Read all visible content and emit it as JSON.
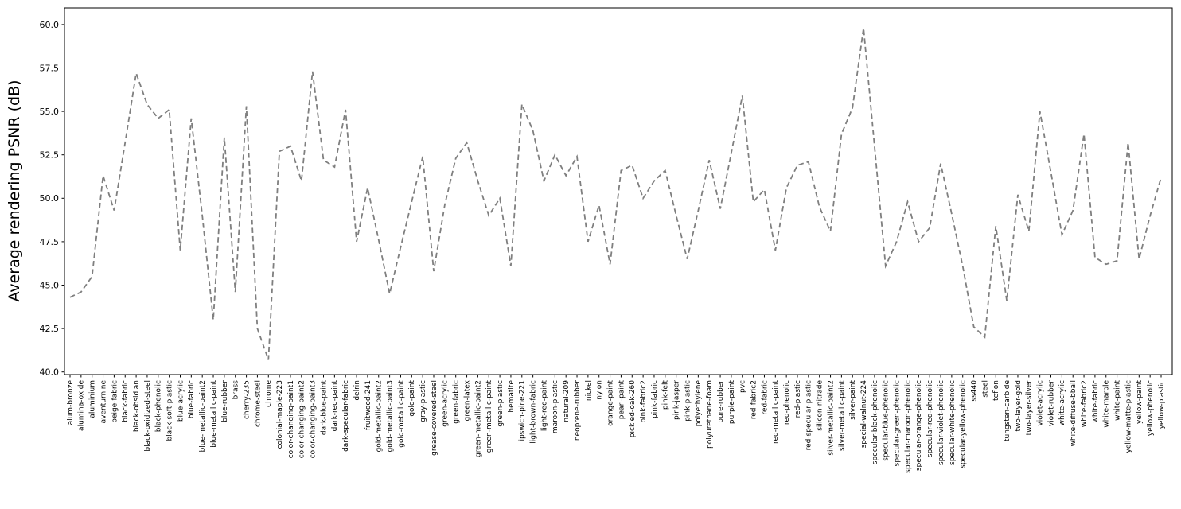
{
  "figure": {
    "background": "#ffffff",
    "line_color": "#7f7f7f",
    "axis_color": "#000000",
    "tick_label_color": "#000000"
  },
  "chart_data": {
    "type": "line",
    "title": "",
    "xlabel": "",
    "ylabel": "Average rendering PSNR (dB)",
    "grid": false,
    "legend": "none",
    "line_style": "dashed",
    "ylim": [
      39.8,
      61.0
    ],
    "yticks": [
      40.0,
      42.5,
      45.0,
      47.5,
      50.0,
      52.5,
      55.0,
      57.5,
      60.0
    ],
    "categories": [
      "alum-bronze",
      "alumina-oxide",
      "aluminium",
      "aventurnine",
      "beige-fabric",
      "black-fabric",
      "black-obsidian",
      "black-oxidized-steel",
      "black-phenolic",
      "black-soft-plastic",
      "blue-acrylic",
      "blue-fabric",
      "blue-metallic-paint2",
      "blue-metallic-paint",
      "blue-rubber",
      "brass",
      "cherry-235",
      "chrome-steel",
      "chrome",
      "colonial-maple-223",
      "color-changing-paint1",
      "color-changing-paint2",
      "color-changing-paint3",
      "dark-blue-paint",
      "dark-red-paint",
      "dark-specular-fabric",
      "delrin",
      "fruitwood-241",
      "gold-metallic-paint2",
      "gold-metallic-paint3",
      "gold-metallic-paint",
      "gold-paint",
      "gray-plastic",
      "grease-covered-steel",
      "green-acrylic",
      "green-fabric",
      "green-latex",
      "green-metallic-paint2",
      "green-metallic-paint",
      "green-plastic",
      "hematite",
      "ipswich-pine-221",
      "light-brown-fabric",
      "light-red-paint",
      "maroon-plastic",
      "natural-209",
      "neoprene-rubber",
      "nickel",
      "nylon",
      "orange-paint",
      "pearl-paint",
      "pickled-oak-260",
      "pink-fabric2",
      "pink-fabric",
      "pink-felt",
      "pink-jasper",
      "pink-plastic",
      "polyethylene",
      "polyurethane-foam",
      "pure-rubber",
      "purple-paint",
      "pvc",
      "red-fabric2",
      "red-fabric",
      "red-metallic-paint",
      "red-phenolic",
      "red-plastic",
      "red-specular-plastic",
      "silicon-nitrade",
      "silver-metallic-paint2",
      "silver-metallic-paint",
      "silver-paint",
      "special-walnut-224",
      "specular-black-phenolic",
      "specular-blue-phenolic",
      "specular-green-phenolic",
      "specular-maroon-phenolic",
      "specular-orange-phenolic",
      "specular-red-phenolic",
      "specular-violet-phenolic",
      "specular-white-phenolic",
      "specular-yellow-phenolic",
      "ss440",
      "steel",
      "teflon",
      "tungsten-carbide",
      "two-layer-gold",
      "two-layer-silver",
      "violet-acrylic",
      "violet-rubber",
      "white-acrylic",
      "white-diffuse-bball",
      "white-fabric2",
      "white-fabric",
      "white-marble",
      "white-paint",
      "yellow-matte-plastic",
      "yellow-paint",
      "yellow-phenolic",
      "yellow-plastic"
    ],
    "values": [
      44.3,
      44.6,
      45.5,
      51.3,
      49.3,
      53.2,
      57.2,
      55.4,
      54.6,
      55.1,
      47.0,
      54.6,
      49.0,
      43.0,
      53.5,
      44.6,
      55.3,
      42.5,
      40.7,
      52.7,
      53.0,
      51.0,
      57.3,
      52.2,
      51.8,
      55.1,
      47.5,
      50.6,
      47.6,
      44.5,
      47.2,
      49.8,
      52.4,
      45.8,
      49.6,
      52.3,
      53.2,
      51.0,
      49.0,
      50.0,
      46.1,
      55.4,
      53.9,
      51.0,
      52.5,
      51.3,
      52.4,
      47.5,
      49.6,
      46.2,
      51.6,
      51.9,
      50.0,
      51.0,
      51.6,
      49.0,
      46.5,
      49.3,
      52.2,
      49.4,
      52.6,
      55.9,
      49.8,
      50.5,
      47.0,
      50.6,
      51.9,
      52.1,
      49.5,
      48.1,
      53.7,
      55.2,
      59.8,
      53.0,
      46.1,
      47.5,
      49.8,
      47.5,
      48.3,
      52.0,
      49.1,
      46.1,
      42.6,
      42.0,
      48.4,
      44.1,
      50.2,
      48.1,
      55.0,
      51.5,
      47.9,
      49.3,
      53.7,
      46.6,
      46.2,
      46.4,
      53.2,
      46.5,
      49.0,
      51.2
    ]
  }
}
